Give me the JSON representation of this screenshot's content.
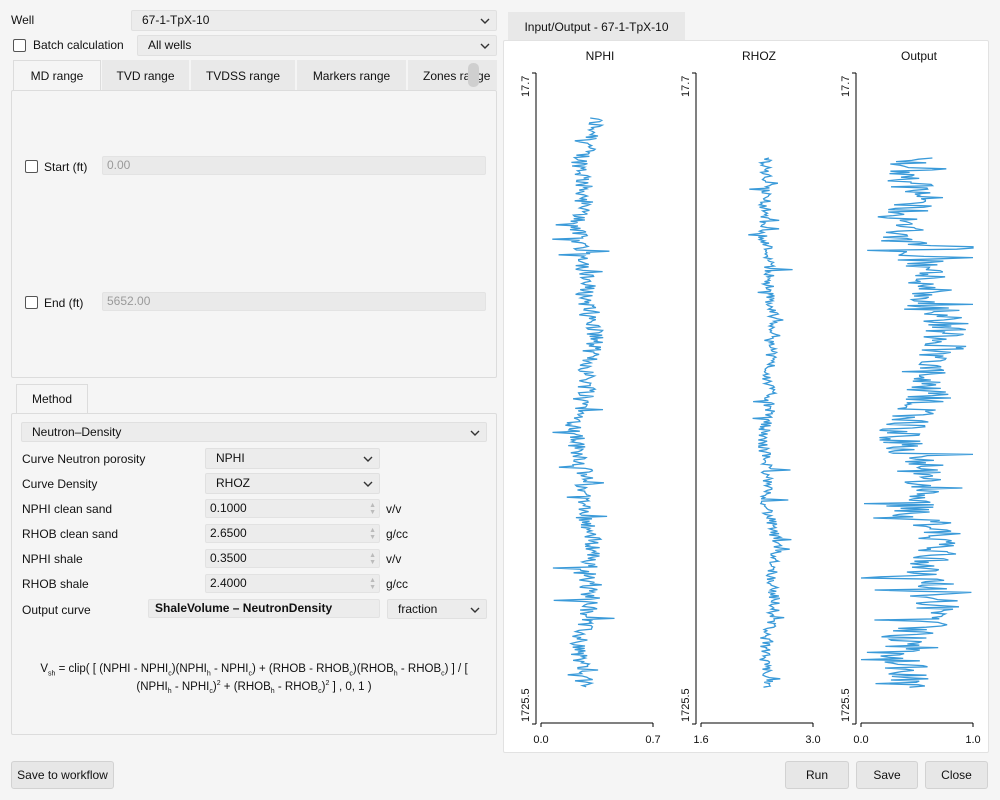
{
  "well": {
    "label": "Well",
    "value": "67-1-TpX-10"
  },
  "batch": {
    "label": "Batch calculation",
    "value": "All wells",
    "checked": false
  },
  "range_tabs": [
    {
      "label": "MD range",
      "active": true
    },
    {
      "label": "TVD range",
      "active": false
    },
    {
      "label": "TVDSS range",
      "active": false
    },
    {
      "label": "Markers range",
      "active": false
    },
    {
      "label": "Zones range",
      "active": false
    }
  ],
  "range": {
    "start": {
      "label": "Start (ft)",
      "value": "0.00",
      "checked": false
    },
    "end": {
      "label": "End (ft)",
      "value": "5652.00",
      "checked": false
    }
  },
  "method_tab": "Method",
  "method": {
    "value": "Neutron–Density",
    "curve_neutron": {
      "label": "Curve Neutron porosity",
      "value": "NPHI"
    },
    "curve_density": {
      "label": "Curve Density",
      "value": "RHOZ"
    },
    "nphi_clean": {
      "label": "NPHI clean sand",
      "value": "0.1000",
      "unit": "v/v"
    },
    "rhob_clean": {
      "label": "RHOB clean sand",
      "value": "2.6500",
      "unit": "g/cc"
    },
    "nphi_shale": {
      "label": "NPHI shale",
      "value": "0.3500",
      "unit": "v/v"
    },
    "rhob_shale": {
      "label": "RHOB shale",
      "value": "2.4000",
      "unit": "g/cc"
    },
    "output": {
      "label": "Output curve",
      "value": "ShaleVolume – NeutronDensity",
      "unit": "fraction"
    }
  },
  "formula": {
    "v": "V",
    "sh": "sh",
    "eq": " = clip( [ (NPHI - NPHI",
    "c1": "c",
    "p2": ")(NPHI",
    "h1": "h",
    "p3": " - NPHI",
    "c2": "c",
    "p4": ") + (RHOB - RHOB",
    "c3": "c",
    "p5": ")(RHOB",
    "h2": "h",
    "p6": " - RHOB",
    "c4": "c",
    "p7": ") ] / [",
    "l2a": "(NPHI",
    "h3": "h",
    "l2b": " - NPHI",
    "c5": "c",
    "l2c": ")",
    "sq1": "2",
    "l2d": " + (RHOB",
    "h4": "h",
    "l2e": " - RHOB",
    "c6": "c",
    "l2f": ")",
    "sq2": "2",
    "l2g": " ] , 0, 1 )"
  },
  "buttons": {
    "save_workflow": "Save to workflow",
    "run": "Run",
    "save": "Save",
    "close": "Close"
  },
  "plot_tab": "Input/Output - 67-1-TpX-10",
  "colors": {
    "curve": "#3a9ad9",
    "axis": "#000000"
  },
  "chart_data": [
    {
      "type": "line",
      "title": "NPHI",
      "xlim": [
        0.0,
        0.7
      ],
      "xticks": [
        "0.0",
        "0.7"
      ],
      "ylim": [
        "17.7",
        "1725.5"
      ],
      "depth_range": [
        17.7,
        1725.5
      ],
      "x_range": [
        0.0,
        0.7
      ],
      "series_base": 0.28,
      "series_amp": 0.1
    },
    {
      "type": "line",
      "title": "RHOZ",
      "xlim": [
        1.6,
        3.0
      ],
      "xticks": [
        "1.6",
        "3.0"
      ],
      "ylim": [
        "17.7",
        "1725.5"
      ],
      "depth_range": [
        17.7,
        1725.5
      ],
      "x_range": [
        1.6,
        3.0
      ],
      "series_base": 2.45,
      "series_amp": 0.12
    },
    {
      "type": "line",
      "title": "Output",
      "xlim": [
        0.0,
        1.0
      ],
      "xticks": [
        "0.0",
        "1.0"
      ],
      "ylim": [
        "17.7",
        "1725.5"
      ],
      "depth_range": [
        17.7,
        1725.5
      ],
      "x_range": [
        0.0,
        1.0
      ],
      "series_base": 0.55,
      "series_amp": 0.35
    }
  ]
}
